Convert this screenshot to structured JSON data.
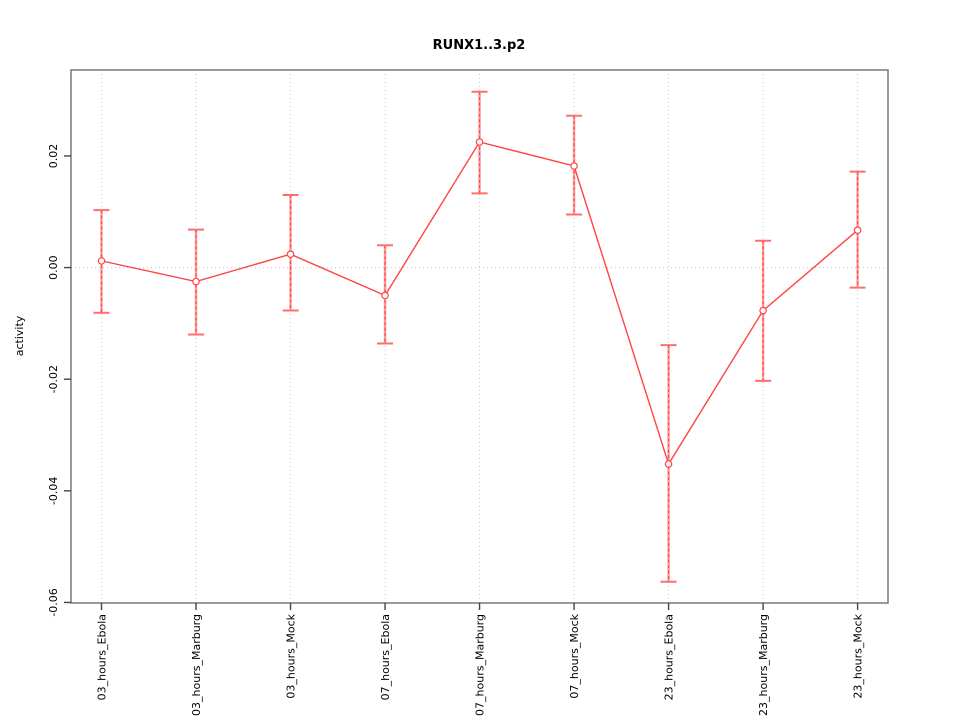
{
  "chart_data": {
    "type": "line",
    "title": "RUNX1..3.p2",
    "xlabel": "",
    "ylabel": "activity",
    "categories": [
      "03_hours_Ebola",
      "03_hours_Marburg",
      "03_hours_Mock",
      "07_hours_Ebola",
      "07_hours_Marburg",
      "07_hours_Mock",
      "23_hours_Ebola",
      "23_hours_Marburg",
      "23_hours_Mock"
    ],
    "series": [
      {
        "name": "activity",
        "values": [
          0.0012,
          -0.0025,
          0.0024,
          -0.005,
          0.0225,
          0.0182,
          -0.0352,
          -0.0077,
          0.0067
        ],
        "upper": [
          0.0103,
          0.0068,
          0.013,
          0.004,
          0.0315,
          0.0272,
          -0.0139,
          0.0048,
          0.0172
        ],
        "lower": [
          -0.0081,
          -0.012,
          -0.0077,
          -0.0136,
          0.0133,
          0.0095,
          -0.0563,
          -0.0203,
          -0.0036
        ]
      }
    ],
    "ylim": [
      -0.0601,
      0.0354
    ],
    "yticks": [
      0.02,
      0.0,
      -0.02,
      -0.04,
      -0.06
    ],
    "ytick_labels": [
      "0.02",
      "0.00",
      "-0.02",
      "-0.04",
      "-0.06"
    ],
    "grid": "dotted vertical line at each category, dotted horizontal line at y=0",
    "legend": null,
    "marker": "open-circle",
    "colors": {
      "line": "#ff4444",
      "marker": "#ff4444",
      "errorbar_solid": "#ff9999",
      "errorbar_dash": "#ff4444",
      "errorbar_cap": "#ff6e6e",
      "grid": "#c8c8c8",
      "box": "#6e6e6e",
      "tick": "#444444",
      "text": "#000000",
      "background": "#ffffff"
    }
  }
}
